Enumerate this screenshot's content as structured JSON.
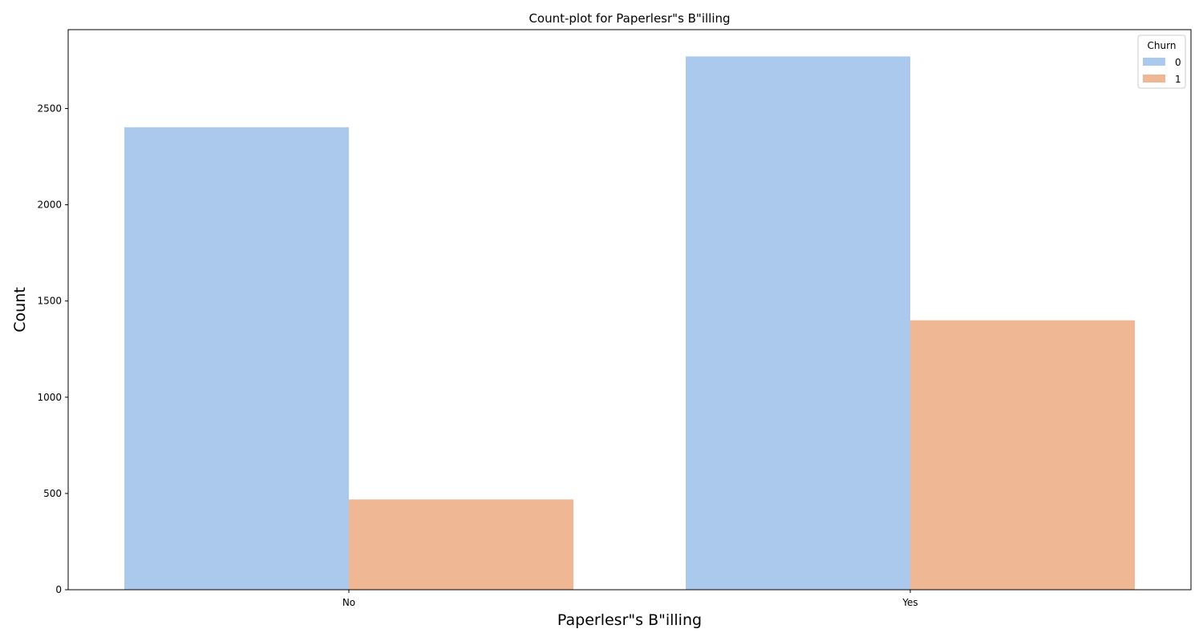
{
  "chart_data": {
    "type": "bar",
    "title": "Count-plot for Paperlesr\"s B\"illing",
    "xlabel": "Paperlesr\"s B\"illing",
    "ylabel": "Count",
    "categories": [
      "No",
      "Yes"
    ],
    "ylim": [
      0,
      2910
    ],
    "yticks": [
      0,
      500,
      1000,
      1500,
      2000,
      2500
    ],
    "grid": false,
    "legend": {
      "title": "Churn",
      "placement": "top-right"
    },
    "series": [
      {
        "name": "0",
        "values": [
          2403,
          2771
        ],
        "color": "#abc9ed"
      },
      {
        "name": "1",
        "values": [
          469,
          1400
        ],
        "color": "#f0b794"
      }
    ]
  }
}
